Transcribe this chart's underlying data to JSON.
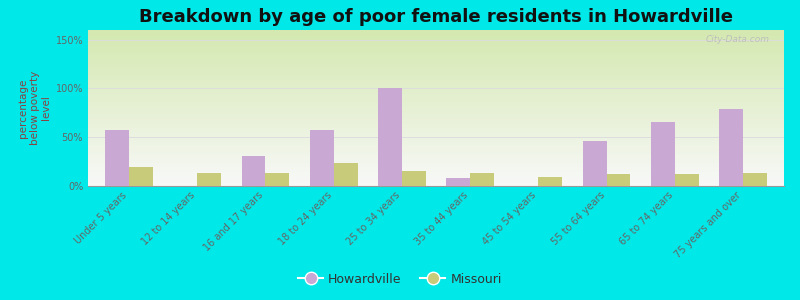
{
  "title": "Breakdown by age of poor female residents in Howardville",
  "ylabel": "percentage\nbelow poverty\nlevel",
  "categories": [
    "Under 5 years",
    "12 to 14 years",
    "16 and 17 years",
    "18 to 24 years",
    "25 to 34 years",
    "35 to 44 years",
    "45 to 54 years",
    "55 to 64 years",
    "65 to 74 years",
    "75 years and over"
  ],
  "howardville": [
    57,
    0,
    31,
    57,
    100,
    8,
    0,
    46,
    66,
    79
  ],
  "missouri": [
    19,
    13,
    13,
    24,
    15,
    13,
    9,
    12,
    12,
    13
  ],
  "howardville_color": "#c9a8d4",
  "missouri_color": "#c8cc7a",
  "bar_width": 0.35,
  "ylim": [
    0,
    160
  ],
  "yticks": [
    0,
    50,
    100,
    150
  ],
  "ytick_labels": [
    "0%",
    "50%",
    "100%",
    "150%"
  ],
  "background_color": "#00e8e8",
  "plot_bg_top": "#d4e8b0",
  "plot_bg_bottom": "#f8f8f8",
  "title_fontsize": 13,
  "axis_label_fontsize": 7.5,
  "tick_fontsize": 7,
  "ylabel_color": "#884444",
  "tick_color": "#666666",
  "watermark": "City-Data.com",
  "grid_color": "#dddddd"
}
